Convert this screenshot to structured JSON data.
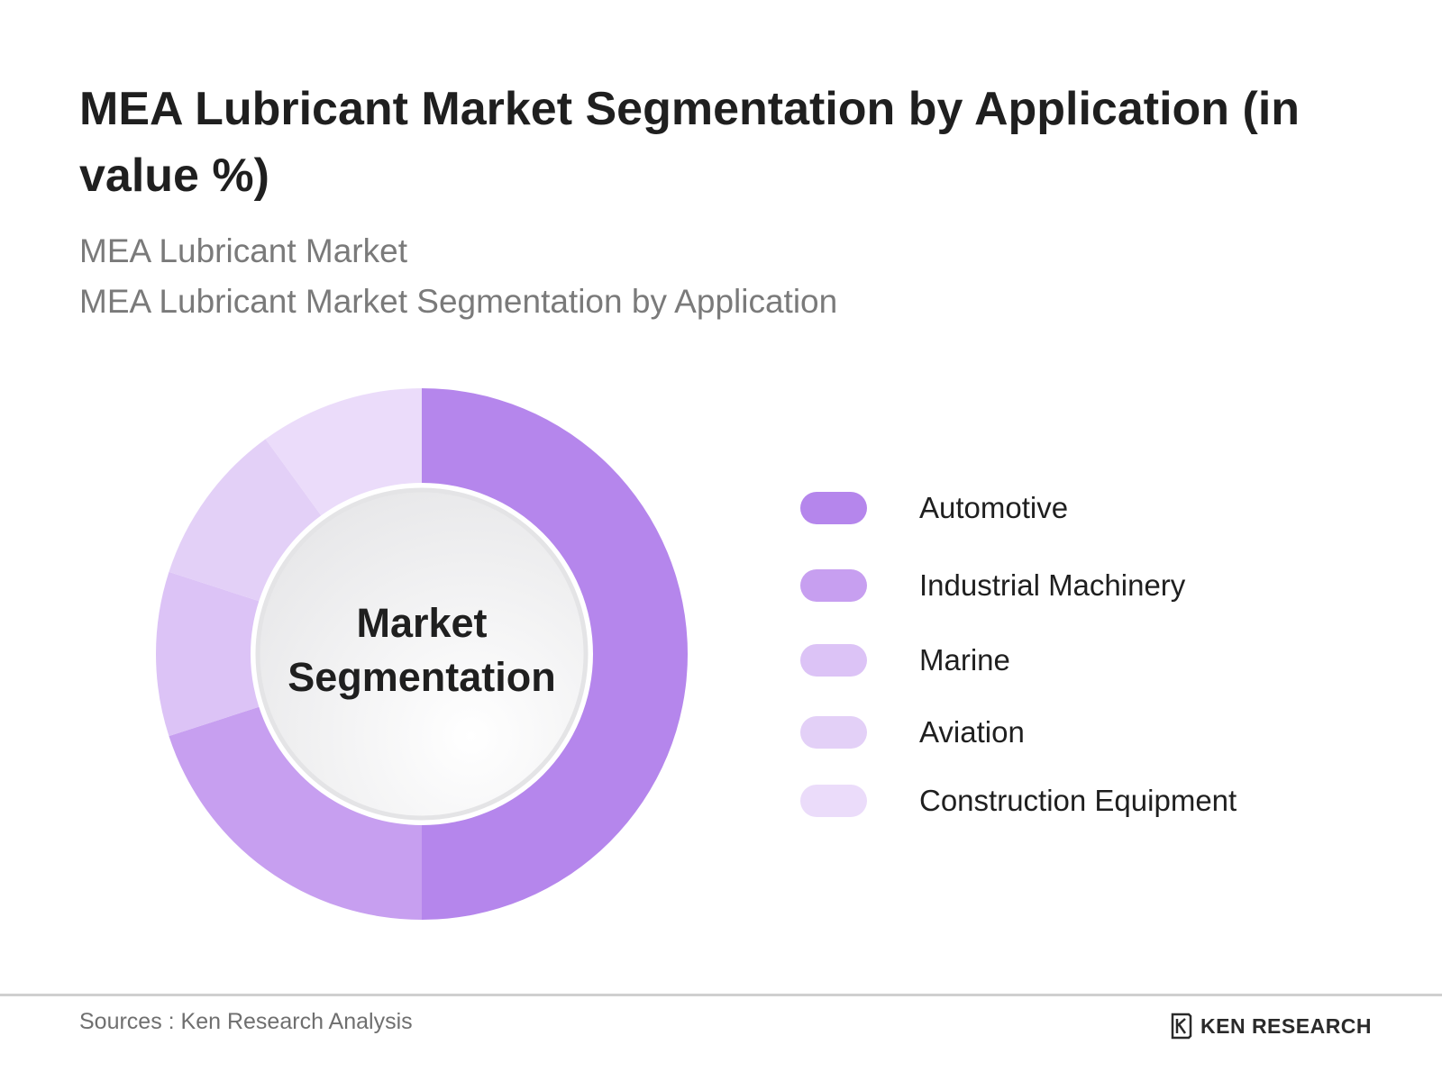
{
  "title": "MEA Lubricant Market Segmentation by Application (in value %)",
  "subtitles": [
    "MEA Lubricant Market",
    "MEA Lubricant Market Segmentation by Application"
  ],
  "center_label": {
    "line1": "Market",
    "line2": "Segmentation"
  },
  "chart_data": {
    "type": "pie",
    "variant": "donut",
    "categories": [
      "Automotive",
      "Industrial Machinery",
      "Marine",
      "Aviation",
      "Construction Equipment"
    ],
    "values": [
      50,
      20,
      10,
      10,
      10
    ],
    "colors": [
      "#b586ec",
      "#c79ff0",
      "#dcc3f6",
      "#e3d0f7",
      "#ebdcfa"
    ],
    "legend_position": "right"
  },
  "footer": {
    "source": "Sources : Ken Research Analysis",
    "brand": "KEN RESEARCH"
  }
}
